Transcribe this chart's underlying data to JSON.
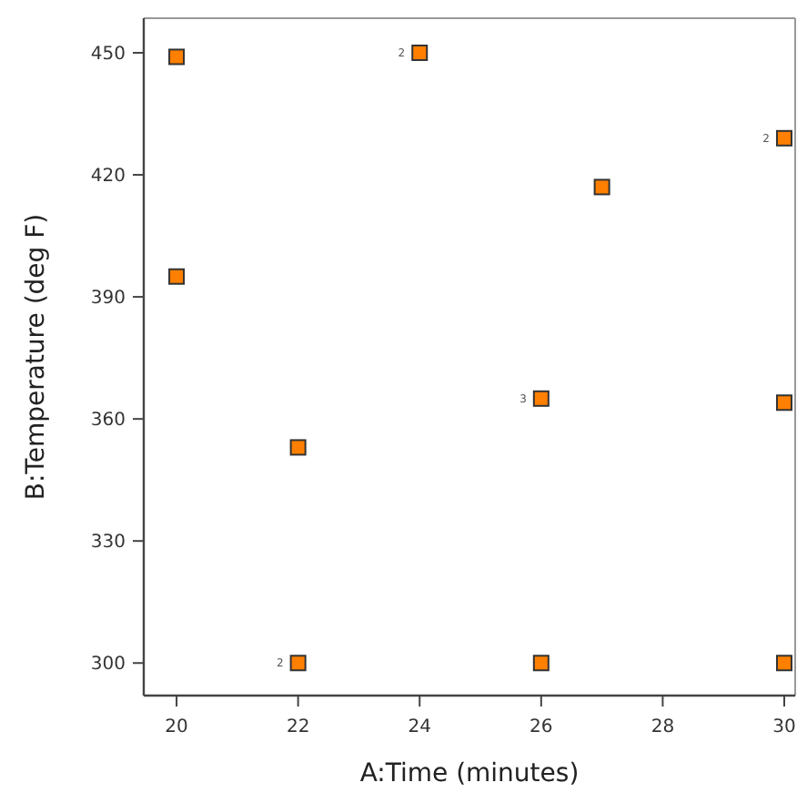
{
  "chart_data": {
    "type": "scatter",
    "xlabel": "A:Time (minutes)",
    "ylabel": "B:Temperature (deg F)",
    "xlim": [
      19.46,
      30.18
    ],
    "xticks": [
      20,
      22,
      24,
      26,
      28,
      30
    ],
    "ylim": [
      292,
      458.5
    ],
    "yticks": [
      300,
      330,
      360,
      390,
      420,
      450
    ],
    "grid": false,
    "marker": "square",
    "series": [
      {
        "color": "#ff7f00",
        "x": [
          20,
          24,
          30,
          27,
          20,
          26,
          30,
          22,
          22,
          26,
          30
        ],
        "values": [
          449,
          450,
          429,
          417,
          395,
          365,
          364,
          353,
          300,
          300,
          300
        ]
      }
    ],
    "annotations": [
      {
        "text": "2",
        "x": 24,
        "y": 450
      },
      {
        "text": "2",
        "x": 30,
        "y": 429
      },
      {
        "text": "3",
        "x": 26,
        "y": 365
      },
      {
        "text": "2",
        "x": 22,
        "y": 300
      }
    ]
  }
}
